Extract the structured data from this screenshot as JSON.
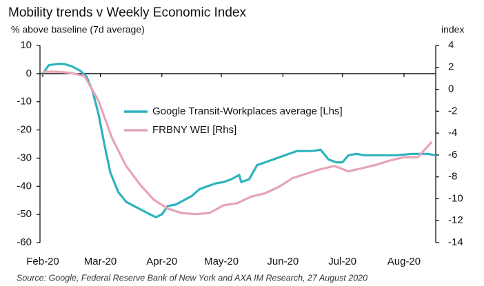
{
  "chart_data": {
    "type": "line",
    "title": "Mobility trends v Weekly Economic Index",
    "y_label": "% above baseline (7d average)",
    "y2_label": "index",
    "source": "Source: Google, Federal Reserve Bank of New York and AXA IM Research, 27 August 2020",
    "xlim": [
      -1.4,
      198
    ],
    "xticks": [
      {
        "value": 0,
        "label": "Feb-20"
      },
      {
        "value": 29,
        "label": "Mar-20"
      },
      {
        "value": 60,
        "label": "Apr-20"
      },
      {
        "value": 90,
        "label": "May-20"
      },
      {
        "value": 121,
        "label": "Jun-20"
      },
      {
        "value": 151,
        "label": "Jul-20"
      },
      {
        "value": 182,
        "label": "Aug-20"
      }
    ],
    "ylim": [
      -60,
      10
    ],
    "yticks": [
      10,
      0,
      -10,
      -20,
      -30,
      -40,
      -50,
      -60
    ],
    "y2lim": [
      -14,
      4
    ],
    "y2ticks": [
      4,
      2,
      0,
      -2,
      -4,
      -6,
      -8,
      -10,
      -12,
      -14
    ],
    "legend": "upper center",
    "series": [
      {
        "name": "Google Transit-Workplaces average [Lhs]",
        "color": "#2cb3be",
        "axis": "y",
        "x": [
          0,
          3,
          8,
          11,
          15,
          19,
          22,
          25,
          28,
          31,
          34,
          38,
          42,
          46,
          50,
          54,
          57,
          60,
          63,
          67,
          71,
          75,
          79,
          83,
          87,
          91,
          95,
          99,
          100,
          104,
          108,
          112,
          116,
          120,
          124,
          128,
          132,
          136,
          140,
          144,
          148,
          151,
          154,
          158,
          162,
          170,
          178,
          186,
          194,
          198
        ],
        "values": [
          0,
          3,
          3.5,
          3.4,
          2.5,
          1,
          -1,
          -6,
          -14,
          -25,
          -35,
          -42,
          -45.5,
          -47,
          -48.5,
          -50,
          -51,
          -50,
          -47,
          -46.5,
          -45,
          -43.5,
          -41,
          -40,
          -39,
          -38.5,
          -37.5,
          -36,
          -38.5,
          -37.5,
          -32.5,
          -31.5,
          -30.5,
          -29.5,
          -28.5,
          -27.5,
          -27.5,
          -27.5,
          -27,
          -30.5,
          -31.5,
          -31.5,
          -29,
          -28.5,
          -29,
          -29,
          -29,
          -28.5,
          -28.5,
          -29
        ]
      },
      {
        "name": "FRBNY WEI [Rhs]",
        "color": "#e8a3b6",
        "axis": "y2",
        "x": [
          0,
          7,
          14,
          21,
          28,
          35,
          42,
          49,
          56,
          63,
          70,
          77,
          84,
          91,
          98,
          105,
          112,
          119,
          126,
          133,
          140,
          147,
          154,
          161,
          168,
          175,
          182,
          189,
          196
        ],
        "values": [
          1.6,
          1.6,
          1.5,
          1.2,
          -1.0,
          -4.5,
          -7.0,
          -8.7,
          -10.1,
          -10.9,
          -11.3,
          -11.4,
          -11.3,
          -10.6,
          -10.4,
          -9.8,
          -9.5,
          -8.9,
          -8.1,
          -7.7,
          -7.3,
          -7.0,
          -7.5,
          -7.2,
          -6.9,
          -6.5,
          -6.2,
          -6.2,
          -4.8
        ]
      }
    ]
  }
}
